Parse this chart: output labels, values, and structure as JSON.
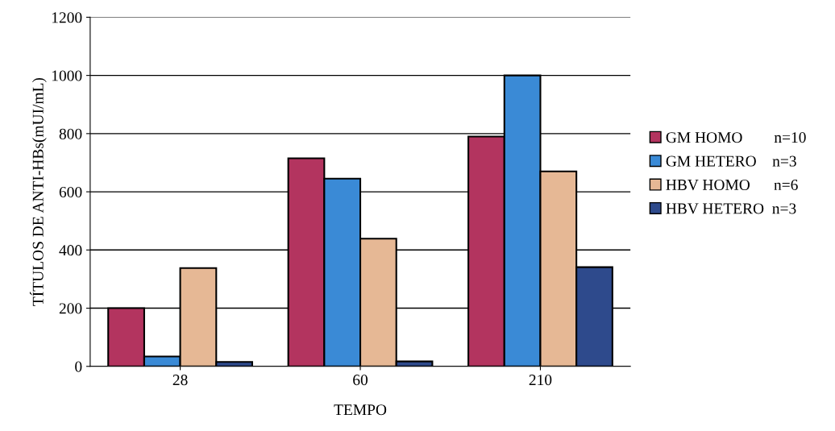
{
  "chart_data": {
    "type": "bar",
    "xlabel": "TEMPO",
    "ylabel": "TÍTULOS DE ANTI-HBs(mUI/mL)",
    "categories": [
      "28",
      "60",
      "210"
    ],
    "series": [
      {
        "name": "GM HOMO        n=10",
        "color": "#b3345f",
        "values": [
          200,
          715,
          790
        ]
      },
      {
        "name": "GM HETERO    n=3",
        "color": "#3a8ad6",
        "values": [
          34,
          645,
          1000
        ]
      },
      {
        "name": "HBV HOMO      n=6",
        "color": "#e6b895",
        "values": [
          338,
          439,
          670
        ]
      },
      {
        "name": "HBV HETERO  n=3",
        "color": "#2e4a8c",
        "values": [
          15,
          17,
          341
        ]
      }
    ],
    "ylim": [
      0,
      1200
    ],
    "yticks": [
      0,
      200,
      400,
      600,
      800,
      1000,
      1200
    ],
    "grid": "y",
    "legend": "right"
  }
}
